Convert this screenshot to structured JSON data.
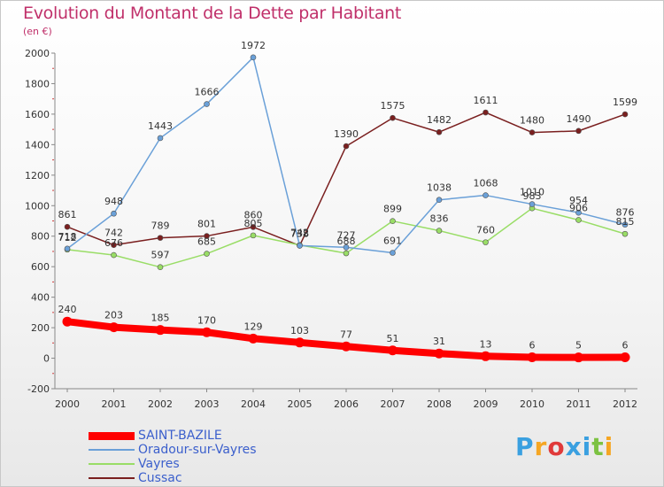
{
  "header": {
    "title": "Evolution du Montant de la Dette par Habitant",
    "subtitle": "(en €)"
  },
  "logo": {
    "letters": [
      "P",
      "r",
      "o",
      "x",
      "i",
      "t",
      "i"
    ],
    "colors": [
      "#3aa0e0",
      "#f5a623",
      "#e03a3a",
      "#3aa0e0",
      "#3aa0e0",
      "#7cc242",
      "#f5a623"
    ]
  },
  "chart_data": {
    "type": "line",
    "title": "Evolution du Montant de la Dette par Habitant",
    "subtitle": "(en €)",
    "xlabel": "",
    "ylabel": "",
    "x": [
      "2000",
      "2001",
      "2002",
      "2003",
      "2004",
      "2005",
      "2006",
      "2007",
      "2008",
      "2009",
      "2010",
      "2011",
      "2012"
    ],
    "ylim": [
      -200,
      2000
    ],
    "yticks": [
      -200,
      0,
      200,
      400,
      600,
      800,
      1000,
      1200,
      1400,
      1600,
      1800,
      2000
    ],
    "grid": false,
    "legend": "bottom-left",
    "series": [
      {
        "name": "SAINT-BAZILE",
        "color": "#ff0000",
        "values": [
          240,
          203,
          185,
          170,
          129,
          103,
          77,
          51,
          31,
          13,
          6,
          5,
          6
        ],
        "labels": [
          "240",
          "203",
          "185",
          "170",
          "129",
          "103",
          "77",
          "51",
          "31",
          "13",
          "6",
          "5",
          "6"
        ]
      },
      {
        "name": "Oradour-sur-Vayres",
        "color": "#6aa0d8",
        "values": [
          718,
          948,
          1443,
          1666,
          1972,
          738,
          727,
          691,
          1038,
          1068,
          1010,
          954,
          876
        ],
        "labels": [
          "718",
          "948",
          "1443",
          "1666",
          "1972",
          "738",
          "727",
          "691",
          "1038",
          "1068",
          "1010",
          "954",
          "876"
        ]
      },
      {
        "name": "Vayres",
        "color": "#99dd66",
        "values": [
          712,
          676,
          597,
          685,
          805,
          742,
          688,
          899,
          836,
          760,
          983,
          906,
          815
        ],
        "labels": [
          "712",
          "676",
          "597",
          "685",
          "805",
          "742",
          "688",
          "899",
          "836",
          "760",
          "983",
          "906",
          "815"
        ]
      },
      {
        "name": "Cussac",
        "color": "#7a1f1f",
        "values": [
          861,
          742,
          789,
          801,
          860,
          738,
          1390,
          1575,
          1482,
          1611,
          1480,
          1490,
          1599
        ],
        "labels": [
          "861",
          "742",
          "789",
          "801",
          "860",
          "738",
          "1390",
          "1575",
          "1482",
          "1611",
          "1480",
          "1490",
          "1599"
        ]
      }
    ]
  }
}
